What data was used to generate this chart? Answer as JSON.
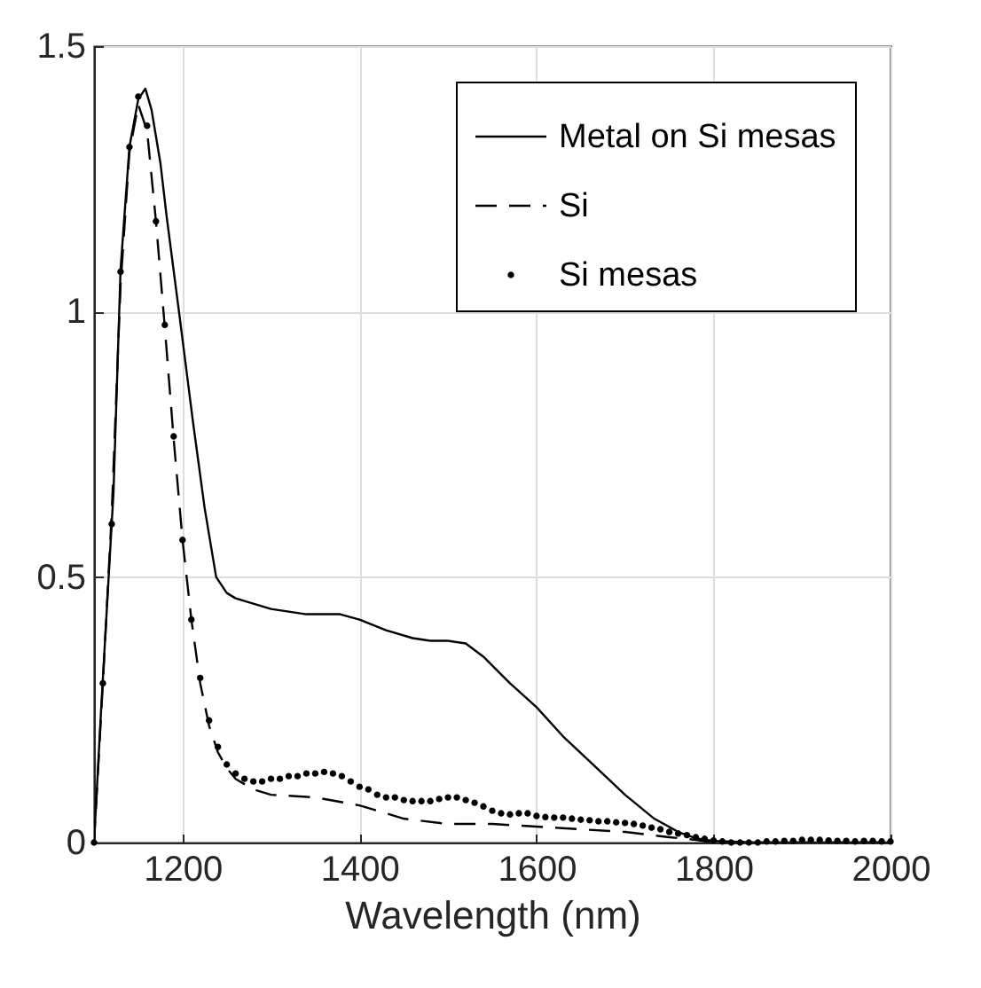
{
  "chart_data": {
    "type": "line",
    "xlabel": "Wavelength (nm)",
    "xlim": [
      1100,
      2000
    ],
    "xticks": [
      1200,
      1400,
      1600,
      1800,
      2000
    ],
    "ylim": [
      0,
      1.5
    ],
    "yticks": [
      0,
      0.5,
      1,
      1.5
    ],
    "grid": true,
    "legend": "top right",
    "series": [
      {
        "name": "Metal on Si mesas",
        "color": "#000000",
        "line_style": "solid",
        "x": [
          1100,
          1108,
          1122,
          1130,
          1140,
          1150,
          1158,
          1165,
          1175,
          1182,
          1196,
          1212,
          1225,
          1238,
          1250,
          1260,
          1280,
          1300,
          1340,
          1378,
          1400,
          1430,
          1460,
          1480,
          1500,
          1520,
          1540,
          1570,
          1600,
          1630,
          1665,
          1700,
          1733,
          1760,
          1780,
          1800,
          1850,
          1900,
          1950,
          2000
        ],
        "values": [
          0,
          0.25,
          0.66,
          1.08,
          1.31,
          1.4,
          1.42,
          1.38,
          1.28,
          1.18,
          1.0,
          0.79,
          0.63,
          0.5,
          0.47,
          0.46,
          0.45,
          0.44,
          0.43,
          0.43,
          0.42,
          0.4,
          0.385,
          0.38,
          0.38,
          0.375,
          0.35,
          0.3,
          0.255,
          0.2,
          0.145,
          0.09,
          0.045,
          0.02,
          0.008,
          0.003,
          0,
          0,
          0,
          0
        ]
      },
      {
        "name": "Si",
        "color": "#000000",
        "line_style": "dashed",
        "x": [
          1100,
          1110,
          1120,
          1130,
          1140,
          1150,
          1160,
          1170,
          1180,
          1190,
          1200,
          1210,
          1220,
          1230,
          1240,
          1250,
          1260,
          1280,
          1300,
          1350,
          1400,
          1450,
          1500,
          1550,
          1600,
          1650,
          1700,
          1750,
          1780,
          1800,
          1900,
          2000
        ],
        "values": [
          0,
          0.3,
          0.62,
          1.05,
          1.3,
          1.39,
          1.34,
          1.17,
          0.97,
          0.76,
          0.57,
          0.42,
          0.3,
          0.22,
          0.17,
          0.14,
          0.12,
          0.1,
          0.09,
          0.085,
          0.07,
          0.045,
          0.035,
          0.035,
          0.03,
          0.025,
          0.02,
          0.01,
          0.005,
          0,
          0,
          0
        ]
      },
      {
        "name": "Si mesas",
        "color": "#000000",
        "type": "scatter",
        "marker": "circle",
        "x": [
          1100,
          1110,
          1120,
          1130,
          1140,
          1150,
          1160,
          1170,
          1180,
          1190,
          1200,
          1210,
          1220,
          1230,
          1240,
          1250,
          1260,
          1270,
          1280,
          1290,
          1300,
          1310,
          1320,
          1330,
          1340,
          1350,
          1360,
          1370,
          1380,
          1390,
          1400,
          1410,
          1420,
          1430,
          1440,
          1450,
          1460,
          1470,
          1480,
          1490,
          1500,
          1510,
          1520,
          1530,
          1540,
          1550,
          1560,
          1570,
          1580,
          1590,
          1600,
          1610,
          1620,
          1630,
          1640,
          1650,
          1660,
          1670,
          1680,
          1690,
          1700,
          1710,
          1720,
          1730,
          1740,
          1750,
          1760,
          1770,
          1780,
          1790,
          1800,
          1810,
          1820,
          1830,
          1840,
          1850,
          1860,
          1870,
          1880,
          1890,
          1900,
          1910,
          1920,
          1930,
          1940,
          1950,
          1960,
          1970,
          1980,
          1990,
          2000
        ],
        "values": [
          0,
          0.3,
          0.6,
          1.075,
          1.31,
          1.405,
          1.35,
          1.17,
          0.975,
          0.765,
          0.57,
          0.42,
          0.31,
          0.23,
          0.18,
          0.147,
          0.13,
          0.12,
          0.115,
          0.115,
          0.12,
          0.12,
          0.125,
          0.125,
          0.13,
          0.13,
          0.133,
          0.13,
          0.125,
          0.115,
          0.105,
          0.1,
          0.09,
          0.085,
          0.085,
          0.08,
          0.078,
          0.078,
          0.078,
          0.082,
          0.085,
          0.085,
          0.08,
          0.075,
          0.068,
          0.06,
          0.055,
          0.053,
          0.055,
          0.055,
          0.05,
          0.048,
          0.047,
          0.047,
          0.045,
          0.043,
          0.042,
          0.04,
          0.04,
          0.038,
          0.037,
          0.035,
          0.032,
          0.028,
          0.025,
          0.02,
          0.017,
          0.014,
          0.01,
          0.007,
          0.004,
          0.002,
          0,
          0,
          0,
          0,
          0.002,
          0.002,
          0.003,
          0.003,
          0.005,
          0.005,
          0.005,
          0.004,
          0.003,
          0.003,
          0.002,
          0.003,
          0.003,
          0.002,
          0.002
        ]
      }
    ]
  }
}
